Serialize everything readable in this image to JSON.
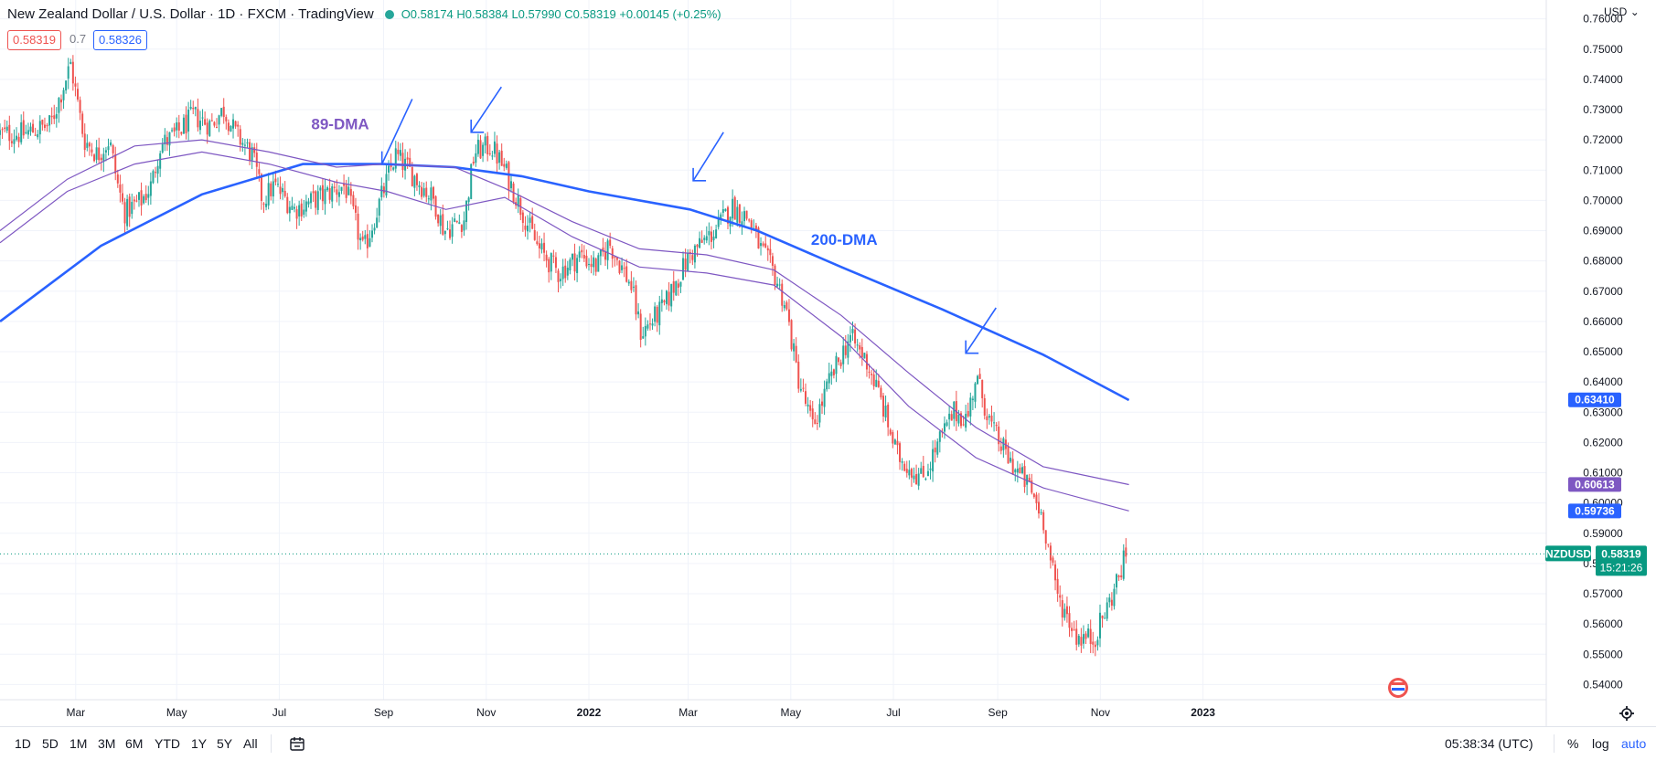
{
  "header": {
    "title": "New Zealand Dollar / U.S. Dollar · 1D · FXCM · TradingView",
    "ohlc": {
      "o": "O0.58174",
      "h": "H0.58384",
      "l": "L0.57990",
      "c": "C0.58319",
      "chg": "+0.00145 (+0.25%)"
    },
    "bid": "0.58319",
    "spread": "0.7",
    "ask": "0.58326"
  },
  "currency_label": "USD",
  "colors": {
    "up": "#26a69a",
    "down": "#ef5350",
    "ma200": "#2962ff",
    "ma89": "#7e57c2",
    "arrow": "#2962ff",
    "last": "#089981"
  },
  "timeframes": [
    "1D",
    "5D",
    "1M",
    "3M",
    "6M",
    "YTD",
    "1Y",
    "5Y",
    "All"
  ],
  "bottom_right": {
    "time": "05:38:34 (UTC)",
    "pct": "%",
    "log": "log",
    "auto": "auto"
  },
  "chart_data": {
    "type": "candlestick",
    "title": "NZDUSD",
    "ylim": [
      0.535,
      0.762
    ],
    "y_ticks": [
      "0.54000",
      "0.55000",
      "0.56000",
      "0.57000",
      "0.58000",
      "0.59000",
      "0.60000",
      "0.61000",
      "0.62000",
      "0.63000",
      "0.64000",
      "0.65000",
      "0.66000",
      "0.67000",
      "0.68000",
      "0.69000",
      "0.70000",
      "0.71000",
      "0.72000",
      "0.73000",
      "0.74000",
      "0.75000",
      "0.76000"
    ],
    "x_ticks": [
      {
        "label": "Mar",
        "day": 45
      },
      {
        "label": "May",
        "day": 105
      },
      {
        "label": "Jul",
        "day": 166
      },
      {
        "label": "Sep",
        "day": 228
      },
      {
        "label": "Nov",
        "day": 289
      },
      {
        "label": "2022",
        "day": 350
      },
      {
        "label": "Mar",
        "day": 409
      },
      {
        "label": "May",
        "day": 470
      },
      {
        "label": "Jul",
        "day": 531
      },
      {
        "label": "Sep",
        "day": 593
      },
      {
        "label": "Nov",
        "day": 654
      },
      {
        "label": "2023",
        "day": 715
      }
    ],
    "x_range_days": [
      0,
      745
    ],
    "price_path": [
      [
        0,
        0.722
      ],
      [
        14,
        0.722
      ],
      [
        30,
        0.725
      ],
      [
        42,
        0.745
      ],
      [
        50,
        0.72
      ],
      [
        58,
        0.715
      ],
      [
        65,
        0.72
      ],
      [
        70,
        0.705
      ],
      [
        74,
        0.696
      ],
      [
        84,
        0.7
      ],
      [
        90,
        0.705
      ],
      [
        95,
        0.718
      ],
      [
        105,
        0.722
      ],
      [
        115,
        0.728
      ],
      [
        125,
        0.725
      ],
      [
        133,
        0.73
      ],
      [
        140,
        0.722
      ],
      [
        150,
        0.715
      ],
      [
        156,
        0.7
      ],
      [
        163,
        0.705
      ],
      [
        175,
        0.697
      ],
      [
        190,
        0.701
      ],
      [
        205,
        0.705
      ],
      [
        216,
        0.683
      ],
      [
        226,
        0.7
      ],
      [
        235,
        0.715
      ],
      [
        243,
        0.71
      ],
      [
        258,
        0.7
      ],
      [
        264,
        0.69
      ],
      [
        276,
        0.694
      ],
      [
        282,
        0.716
      ],
      [
        292,
        0.718
      ],
      [
        300,
        0.71
      ],
      [
        310,
        0.697
      ],
      [
        320,
        0.684
      ],
      [
        332,
        0.676
      ],
      [
        345,
        0.682
      ],
      [
        355,
        0.678
      ],
      [
        362,
        0.686
      ],
      [
        375,
        0.672
      ],
      [
        381,
        0.656
      ],
      [
        395,
        0.665
      ],
      [
        400,
        0.671
      ],
      [
        410,
        0.682
      ],
      [
        425,
        0.69
      ],
      [
        435,
        0.698
      ],
      [
        445,
        0.694
      ],
      [
        452,
        0.684
      ],
      [
        460,
        0.676
      ],
      [
        467,
        0.665
      ],
      [
        474,
        0.642
      ],
      [
        483,
        0.625
      ],
      [
        493,
        0.64
      ],
      [
        505,
        0.655
      ],
      [
        515,
        0.647
      ],
      [
        523,
        0.635
      ],
      [
        533,
        0.616
      ],
      [
        548,
        0.608
      ],
      [
        558,
        0.62
      ],
      [
        567,
        0.63
      ],
      [
        575,
        0.628
      ],
      [
        580,
        0.642
      ],
      [
        590,
        0.624
      ],
      [
        600,
        0.614
      ],
      [
        612,
        0.605
      ],
      [
        620,
        0.595
      ],
      [
        628,
        0.57
      ],
      [
        640,
        0.556
      ],
      [
        650,
        0.555
      ],
      [
        660,
        0.568
      ],
      [
        670,
        0.584
      ]
    ],
    "series": [
      {
        "name": "200-DMA",
        "color": "#2962ff",
        "values": [
          [
            0,
            0.66
          ],
          [
            60,
            0.685
          ],
          [
            120,
            0.702
          ],
          [
            180,
            0.712
          ],
          [
            228,
            0.712
          ],
          [
            270,
            0.711
          ],
          [
            310,
            0.708
          ],
          [
            350,
            0.703
          ],
          [
            410,
            0.697
          ],
          [
            450,
            0.69
          ],
          [
            500,
            0.678
          ],
          [
            560,
            0.664
          ],
          [
            620,
            0.649
          ],
          [
            671,
            0.634
          ]
        ]
      },
      {
        "name": "89-DMA",
        "color": "#7e57c2",
        "values": [
          [
            0,
            0.69
          ],
          [
            40,
            0.707
          ],
          [
            80,
            0.718
          ],
          [
            120,
            0.72
          ],
          [
            160,
            0.716
          ],
          [
            200,
            0.711
          ],
          [
            228,
            0.712
          ],
          [
            270,
            0.711
          ],
          [
            300,
            0.704
          ],
          [
            340,
            0.693
          ],
          [
            380,
            0.684
          ],
          [
            420,
            0.682
          ],
          [
            460,
            0.677
          ],
          [
            500,
            0.662
          ],
          [
            540,
            0.643
          ],
          [
            580,
            0.625
          ],
          [
            620,
            0.612
          ],
          [
            671,
            0.6061
          ]
        ]
      },
      {
        "name": "MA",
        "color": "#7e57c2",
        "values": [
          [
            0,
            0.686
          ],
          [
            40,
            0.703
          ],
          [
            80,
            0.712
          ],
          [
            120,
            0.716
          ],
          [
            160,
            0.712
          ],
          [
            200,
            0.706
          ],
          [
            230,
            0.703
          ],
          [
            265,
            0.697
          ],
          [
            300,
            0.701
          ],
          [
            340,
            0.688
          ],
          [
            380,
            0.678
          ],
          [
            420,
            0.676
          ],
          [
            460,
            0.672
          ],
          [
            500,
            0.655
          ],
          [
            540,
            0.632
          ],
          [
            580,
            0.615
          ],
          [
            620,
            0.605
          ],
          [
            671,
            0.5974
          ]
        ]
      }
    ],
    "annotations": [
      {
        "text": "89-DMA",
        "color": "#7e57c2",
        "day": 185,
        "price": 0.7235
      },
      {
        "text": "200-DMA",
        "color": "#2962ff",
        "day": 482,
        "price": 0.6853
      }
    ],
    "arrows": [
      {
        "tip_day": 227,
        "tip_price": 0.712,
        "tail_day": 245,
        "tail_price": 0.7335
      },
      {
        "tip_day": 280,
        "tip_price": 0.7225,
        "tail_day": 298,
        "tail_price": 0.7375
      },
      {
        "tip_day": 412,
        "tip_price": 0.7065,
        "tail_day": 430,
        "tail_price": 0.7225
      },
      {
        "tip_day": 574,
        "tip_price": 0.6495,
        "tail_day": 592,
        "tail_price": 0.6645
      }
    ],
    "price_labels": [
      {
        "text": "0.63410",
        "price": 0.6341,
        "color": "#2962ff"
      },
      {
        "text": "0.60613",
        "price": 0.60613,
        "color": "#7e57c2"
      },
      {
        "text": "0.59736",
        "price": 0.59736,
        "color": "#2962ff"
      }
    ],
    "last": {
      "symbol": "NZDUSD",
      "price_text": "0.58319",
      "price": 0.58319,
      "countdown": "15:21:26"
    }
  }
}
